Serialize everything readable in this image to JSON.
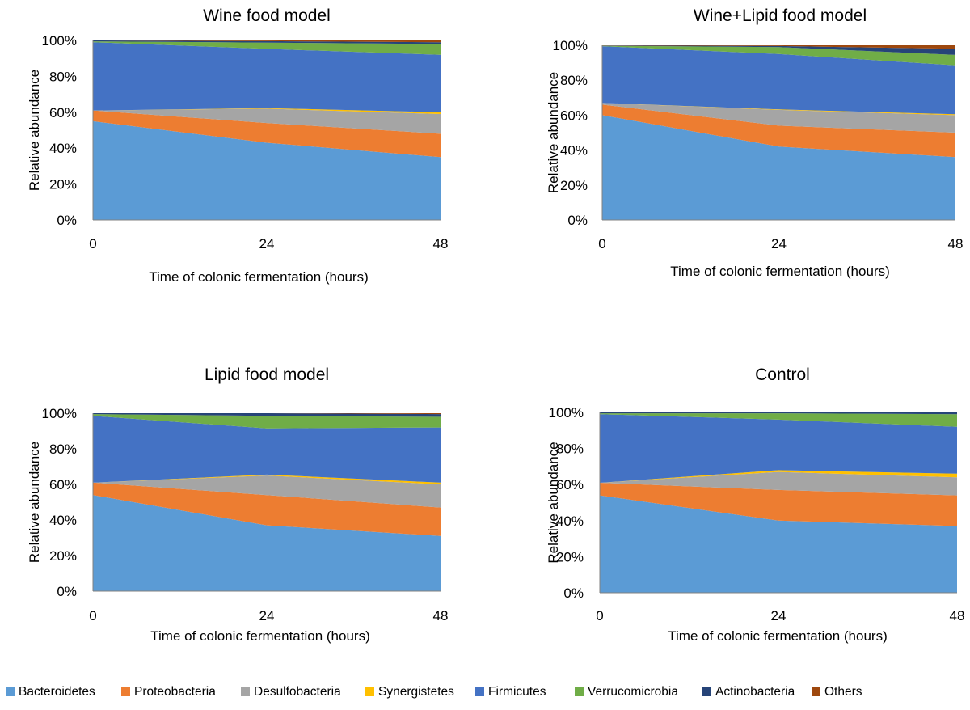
{
  "chart_data": {
    "type": "area",
    "stacked": true,
    "legend": {
      "position": "bottom",
      "entries": [
        {
          "name": "Bacteroidetes",
          "color": "#5B9BD5"
        },
        {
          "name": "Proteobacteria",
          "color": "#ED7D31"
        },
        {
          "name": "Desulfobacteria",
          "color": "#A5A5A5"
        },
        {
          "name": "Synergistetes",
          "color": "#FFC000"
        },
        {
          "name": "Firmicutes",
          "color": "#4472C4"
        },
        {
          "name": "Verrucomicrobia",
          "color": "#70AD47"
        },
        {
          "name": "Actinobacteria",
          "color": "#264478"
        },
        {
          "name": "Others",
          "color": "#9E480E"
        }
      ]
    },
    "panels": [
      {
        "title": "Wine food model",
        "xlabel": "Time of colonic fermentation (hours)",
        "ylabel": "Relative abundance",
        "x": [
          0,
          24,
          48
        ],
        "x_tick_labels": [
          "0",
          "24",
          "48"
        ],
        "ylim": [
          0,
          100
        ],
        "y_tick_labels": [
          "0%",
          "20%",
          "40%",
          "60%",
          "80%",
          "100%"
        ],
        "series": [
          {
            "name": "Bacteroidetes",
            "values": [
              55,
              43,
              35
            ]
          },
          {
            "name": "Proteobacteria",
            "values": [
              6,
              11,
              13
            ]
          },
          {
            "name": "Desulfobacteria",
            "values": [
              0,
              8,
              11
            ]
          },
          {
            "name": "Synergistetes",
            "values": [
              0,
              0.3,
              1
            ]
          },
          {
            "name": "Firmicutes",
            "values": [
              38,
              33,
              32
            ]
          },
          {
            "name": "Verrucomicrobia",
            "values": [
              0.5,
              3.5,
              6
            ]
          },
          {
            "name": "Actinobacteria",
            "values": [
              0.5,
              0.8,
              1
            ]
          },
          {
            "name": "Others",
            "values": [
              0,
              0.4,
              1
            ]
          }
        ]
      },
      {
        "title": "Wine+Lipid food model",
        "xlabel": "Time of colonic fermentation (hours)",
        "ylabel": "Relative abundance",
        "x": [
          0,
          24,
          48
        ],
        "x_tick_labels": [
          "0",
          "24",
          "48"
        ],
        "ylim": [
          0,
          100
        ],
        "y_tick_labels": [
          "0%",
          "20%",
          "40%",
          "60%",
          "80%",
          "100%"
        ],
        "series": [
          {
            "name": "Bacteroidetes",
            "values": [
              60,
              42,
              36
            ]
          },
          {
            "name": "Proteobacteria",
            "values": [
              6,
              12,
              14
            ]
          },
          {
            "name": "Desulfobacteria",
            "values": [
              1,
              9,
              10
            ]
          },
          {
            "name": "Synergistetes",
            "values": [
              0,
              0.3,
              0.5
            ]
          },
          {
            "name": "Firmicutes",
            "values": [
              32.5,
              31.7,
              28
            ]
          },
          {
            "name": "Verrucomicrobia",
            "values": [
              0.2,
              4,
              6
            ]
          },
          {
            "name": "Actinobacteria",
            "values": [
              0.2,
              0.6,
              3.5
            ]
          },
          {
            "name": "Others",
            "values": [
              0.1,
              0.4,
              2
            ]
          }
        ]
      },
      {
        "title": "Lipid food model",
        "xlabel": "Time of colonic fermentation (hours)",
        "ylabel": "Relative abundance",
        "x": [
          0,
          24,
          48
        ],
        "x_tick_labels": [
          "0",
          "24",
          "48"
        ],
        "ylim": [
          0,
          100
        ],
        "y_tick_labels": [
          "0%",
          "20%",
          "40%",
          "60%",
          "80%",
          "100%"
        ],
        "series": [
          {
            "name": "Bacteroidetes",
            "values": [
              54,
              37,
              31
            ]
          },
          {
            "name": "Proteobacteria",
            "values": [
              7,
              17,
              16
            ]
          },
          {
            "name": "Desulfobacteria",
            "values": [
              0,
              11,
              13
            ]
          },
          {
            "name": "Synergistetes",
            "values": [
              0,
              0.5,
              1
            ]
          },
          {
            "name": "Firmicutes",
            "values": [
              37.5,
              26,
              31
            ]
          },
          {
            "name": "Verrucomicrobia",
            "values": [
              1,
              7,
              6
            ]
          },
          {
            "name": "Actinobacteria",
            "values": [
              0.5,
              1.5,
              1.5
            ]
          },
          {
            "name": "Others",
            "values": [
              0,
              0,
              0.5
            ]
          }
        ]
      },
      {
        "title": "Control",
        "xlabel": "Time of colonic fermentation (hours)",
        "ylabel": "Relative abundance",
        "x": [
          0,
          24,
          48
        ],
        "x_tick_labels": [
          "0",
          "24",
          "48"
        ],
        "ylim": [
          0,
          100
        ],
        "y_tick_labels": [
          "0%",
          "20%",
          "40%",
          "60%",
          "80%",
          "100%"
        ],
        "series": [
          {
            "name": "Bacteroidetes",
            "values": [
              54,
              40,
              37
            ]
          },
          {
            "name": "Proteobacteria",
            "values": [
              7,
              17,
              17
            ]
          },
          {
            "name": "Desulfobacteria",
            "values": [
              0,
              10,
              10
            ]
          },
          {
            "name": "Synergistetes",
            "values": [
              0,
              1,
              2
            ]
          },
          {
            "name": "Firmicutes",
            "values": [
              38,
              28,
              26
            ]
          },
          {
            "name": "Verrucomicrobia",
            "values": [
              0.5,
              3.5,
              7
            ]
          },
          {
            "name": "Actinobacteria",
            "values": [
              0.5,
              0.5,
              1
            ]
          },
          {
            "name": "Others",
            "values": [
              0,
              0,
              0
            ]
          }
        ]
      }
    ]
  }
}
